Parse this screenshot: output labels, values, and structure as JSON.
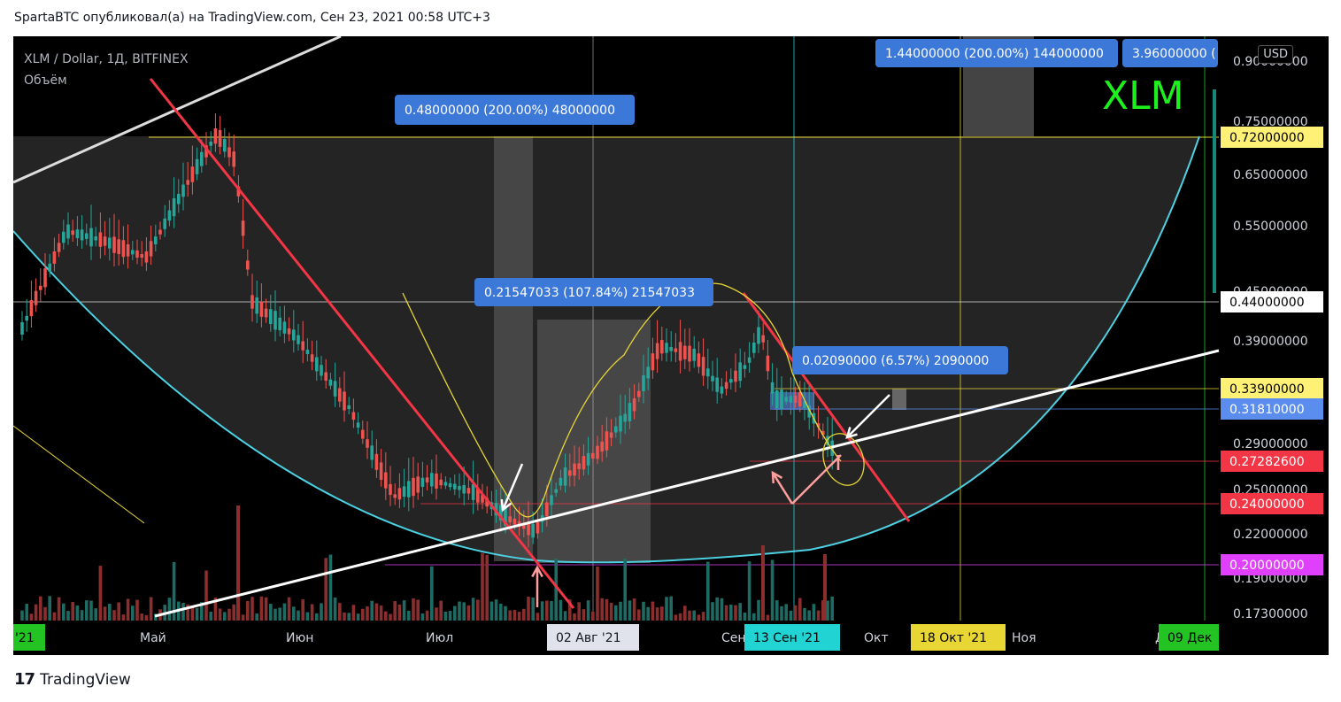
{
  "header": {
    "text": "SpartaBTC опубликовал(а) на TradingView.com, Сен 23, 2021 00:58 UTC+3"
  },
  "footer": {
    "logo_mark": "17",
    "logo_text": "TradingView"
  },
  "legend": {
    "symbol": "XLM / Dollar, 1Д, BITFINEX",
    "volume_label": "Объём"
  },
  "currency": "USD",
  "watermark": "XLM",
  "chart_data": {
    "type": "candlestick",
    "price_axis": {
      "ticks": [
        "0.90000000",
        "0.75000000",
        "0.65000000",
        "0.55000000",
        "0.45000000",
        "0.39000000",
        "0.34000000",
        "0.29000000",
        "0.25000000",
        "0.22000000",
        "0.19000000",
        "0.17300000"
      ],
      "labels": [
        {
          "value": "0.72000000",
          "bg": "#fff176",
          "fg": "#000000",
          "y": 0.72
        },
        {
          "value": "0.44000000",
          "bg": "#ffffff",
          "fg": "#000000",
          "y": 0.44
        },
        {
          "value": "0.33900000",
          "bg": "#fff176",
          "fg": "#000000",
          "y": 0.339
        },
        {
          "value": "0.31810000",
          "bg": "#5b8def",
          "fg": "#ffffff",
          "y": 0.3181
        },
        {
          "value": "0.27282600",
          "bg": "#f23645",
          "fg": "#ffffff",
          "y": 0.272826
        },
        {
          "value": "0.24000000",
          "bg": "#f23645",
          "fg": "#ffffff",
          "y": 0.24
        },
        {
          "value": "0.20000000",
          "bg": "#e040fb",
          "fg": "#ffffff",
          "y": 0.2
        }
      ]
    },
    "time_axis": {
      "ticks": [
        "'21",
        "Май",
        "Июн",
        "Июл",
        "Авг",
        "Сен",
        "Окт",
        "Ноя",
        "Дек"
      ],
      "highlights": [
        {
          "label": "'21",
          "bg": "#22c322",
          "fg": "#000000"
        },
        {
          "label": "02 Авг '21",
          "bg": "#e0e3eb",
          "fg": "#131722"
        },
        {
          "label": "13 Сен '21",
          "bg": "#22d3d3",
          "fg": "#000000"
        },
        {
          "label": "18 Окт '21",
          "bg": "#e8d634",
          "fg": "#000000"
        },
        {
          "label": "09 Дек",
          "bg": "#22c322",
          "fg": "#000000"
        }
      ]
    },
    "annotations": [
      {
        "text": "0.48000000 (200.00%) 48000000"
      },
      {
        "text": "1.44000000 (200.00%) 144000000"
      },
      {
        "text": "3.96000000 ("
      },
      {
        "text": "0.21547033 (107.84%) 21547033"
      },
      {
        "text": "0.02090000 (6.57%) 2090000"
      }
    ],
    "colors": {
      "up": "#26a69a",
      "down": "#ef5350",
      "vol_up": "#1e6b63",
      "vol_down": "#8b2e2e"
    }
  }
}
